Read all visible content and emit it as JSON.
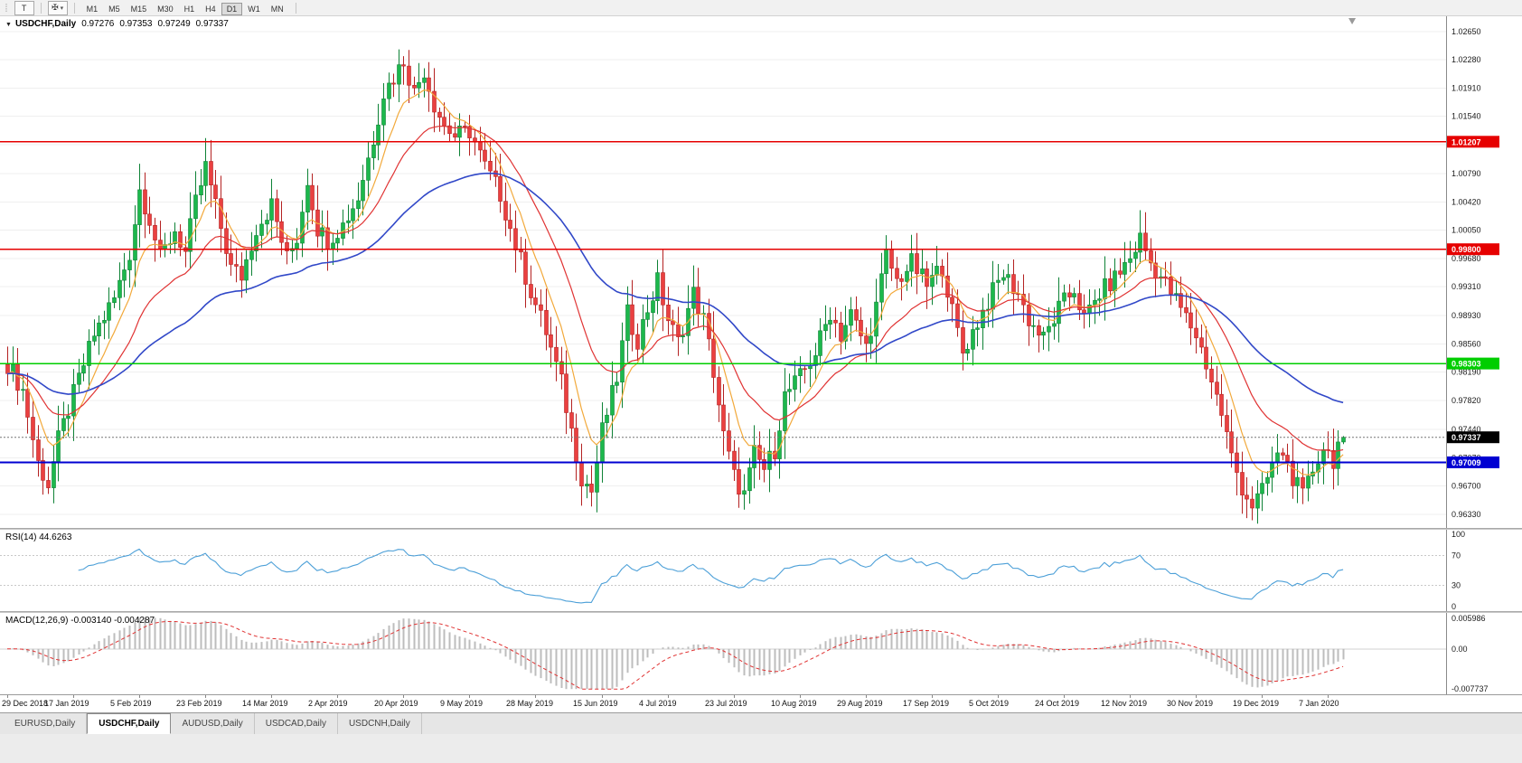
{
  "toolbar": {
    "templates_button": "T",
    "drawing_tool_glyph": "✠",
    "dropdown_glyph": "▾",
    "grip_glyph": "⡇",
    "timeframes": [
      "M1",
      "M5",
      "M15",
      "M30",
      "H1",
      "H4",
      "D1",
      "W1",
      "MN"
    ],
    "active_timeframe": "D1"
  },
  "symbol_header": {
    "dropdown_glyph": "▼",
    "title": "USDCHF,Daily",
    "open": "0.97276",
    "high": "0.97353",
    "low": "0.97249",
    "close": "0.97337"
  },
  "indicators": {
    "rsi_label": "RSI(14) 44.6263",
    "macd_label": "MACD(12,26,9) -0.003140 -0.004287"
  },
  "tabs": [
    {
      "label": "EURUSD,Daily",
      "active": false
    },
    {
      "label": "USDCHF,Daily",
      "active": true
    },
    {
      "label": "AUDUSD,Daily",
      "active": false
    },
    {
      "label": "USDCAD,Daily",
      "active": false
    },
    {
      "label": "USDCNH,Daily",
      "active": false
    }
  ],
  "chart_data": {
    "type": "candlestick",
    "symbol": "USDCHF",
    "timeframe": "Daily",
    "title": "USDCHF,Daily",
    "price_range": [
      0.9615,
      1.0285
    ],
    "price_decimals": 5,
    "price_ticks": [
      1.0265,
      1.0228,
      1.0191,
      1.0154,
      1.0117,
      1.0079,
      1.0042,
      1.0005,
      0.9968,
      0.9931,
      0.9893,
      0.9856,
      0.9819,
      0.9782,
      0.9744,
      0.9707,
      0.967,
      0.9633
    ],
    "x_labels": [
      "29 Dec 2018",
      "17 Jan 2019",
      "5 Feb 2019",
      "23 Feb 2019",
      "14 Mar 2019",
      "2 Apr 2019",
      "20 Apr 2019",
      "9 May 2019",
      "28 May 2019",
      "15 Jun 2019",
      "4 Jul 2019",
      "23 Jul 2019",
      "10 Aug 2019",
      "29 Aug 2019",
      "17 Sep 2019",
      "5 Oct 2019",
      "24 Oct 2019",
      "12 Nov 2019",
      "30 Nov 2019",
      "19 Dec 2019",
      "7 Jan 2020"
    ],
    "label_every": 13,
    "candle_count": 264,
    "price_anchors": [
      [
        0,
        0.983
      ],
      [
        3,
        0.9795
      ],
      [
        6,
        0.97
      ],
      [
        8,
        0.9672
      ],
      [
        10,
        0.973
      ],
      [
        13,
        0.979
      ],
      [
        17,
        0.9868
      ],
      [
        21,
        0.9915
      ],
      [
        24,
        0.9975
      ],
      [
        26,
        1.0058
      ],
      [
        28,
        1.002
      ],
      [
        30,
        0.9968
      ],
      [
        33,
        1.0005
      ],
      [
        35,
        0.9975
      ],
      [
        37,
        1.004
      ],
      [
        39,
        1.0088
      ],
      [
        41,
        1.0035
      ],
      [
        44,
        0.9955
      ],
      [
        46,
        0.9945
      ],
      [
        49,
        1.0008
      ],
      [
        52,
        1.0038
      ],
      [
        55,
        0.9968
      ],
      [
        57,
        0.9995
      ],
      [
        59,
        1.0072
      ],
      [
        61,
        1.0008
      ],
      [
        63,
        0.9992
      ],
      [
        66,
        1.0012
      ],
      [
        69,
        1.0048
      ],
      [
        72,
        1.0125
      ],
      [
        74,
        1.0185
      ],
      [
        76,
        1.0205
      ],
      [
        78,
        1.0228
      ],
      [
        80,
        1.0185
      ],
      [
        82,
        1.0215
      ],
      [
        84,
        1.017
      ],
      [
        86,
        1.0142
      ],
      [
        88,
        1.0128
      ],
      [
        91,
        1.0135
      ],
      [
        94,
        1.0088
      ],
      [
        97,
        1.0052
      ],
      [
        100,
        0.9985
      ],
      [
        103,
        0.9925
      ],
      [
        106,
        0.9872
      ],
      [
        109,
        0.9805
      ],
      [
        111,
        0.9742
      ],
      [
        113,
        0.9682
      ],
      [
        115,
        0.9663
      ],
      [
        117,
        0.9742
      ],
      [
        120,
        0.9812
      ],
      [
        122,
        0.9895
      ],
      [
        124,
        0.9862
      ],
      [
        126,
        0.9902
      ],
      [
        128,
        0.9938
      ],
      [
        130,
        0.9888
      ],
      [
        132,
        0.9858
      ],
      [
        135,
        0.9922
      ],
      [
        137,
        0.9888
      ],
      [
        139,
        0.982
      ],
      [
        141,
        0.9735
      ],
      [
        143,
        0.9682
      ],
      [
        145,
        0.9658
      ],
      [
        147,
        0.9712
      ],
      [
        149,
        0.9692
      ],
      [
        151,
        0.9718
      ],
      [
        153,
        0.9788
      ],
      [
        156,
        0.9812
      ],
      [
        159,
        0.9845
      ],
      [
        162,
        0.9898
      ],
      [
        164,
        0.9868
      ],
      [
        166,
        0.9895
      ],
      [
        169,
        0.9852
      ],
      [
        171,
        0.9905
      ],
      [
        173,
        0.9972
      ],
      [
        175,
        0.9938
      ],
      [
        178,
        0.9962
      ],
      [
        181,
        0.9932
      ],
      [
        184,
        0.9958
      ],
      [
        186,
        0.9898
      ],
      [
        188,
        0.9845
      ],
      [
        190,
        0.9872
      ],
      [
        193,
        0.9912
      ],
      [
        196,
        0.9948
      ],
      [
        199,
        0.9922
      ],
      [
        201,
        0.9888
      ],
      [
        204,
        0.9862
      ],
      [
        207,
        0.9902
      ],
      [
        210,
        0.9928
      ],
      [
        212,
        0.9888
      ],
      [
        215,
        0.9922
      ],
      [
        218,
        0.9942
      ],
      [
        221,
        0.9968
      ],
      [
        223,
        0.9995
      ],
      [
        225,
        0.9962
      ],
      [
        228,
        0.9935
      ],
      [
        231,
        0.9902
      ],
      [
        234,
        0.9868
      ],
      [
        236,
        0.983
      ],
      [
        239,
        0.9765
      ],
      [
        241,
        0.9708
      ],
      [
        243,
        0.9668
      ],
      [
        245,
        0.9645
      ],
      [
        247,
        0.9662
      ],
      [
        249,
        0.9698
      ],
      [
        251,
        0.9715
      ],
      [
        253,
        0.9682
      ],
      [
        255,
        0.9655
      ],
      [
        257,
        0.9692
      ],
      [
        259,
        0.9722
      ],
      [
        261,
        0.9705
      ],
      [
        263,
        0.97337
      ]
    ],
    "last_candle": [
      0.97276,
      0.97353,
      0.97249,
      0.97337
    ],
    "hlines": [
      {
        "price": 1.01207,
        "color": "#e60000",
        "width": 1.4
      },
      {
        "price": 0.998,
        "color": "#e60000",
        "width": 1.4
      },
      {
        "price": 0.98303,
        "color": "#00ce00",
        "width": 1.6
      },
      {
        "price": 0.97009,
        "color": "#0000d2",
        "width": 2
      }
    ],
    "current_price": {
      "value": 0.97337,
      "line_color": "#777777",
      "badge_color": "#000000"
    },
    "moving_averages": [
      {
        "period": 8,
        "color": "#f2a93b",
        "width": 1.2
      },
      {
        "period": 21,
        "color": "#e03333",
        "width": 1.2
      },
      {
        "period": 55,
        "color": "#3148c8",
        "width": 1.6
      }
    ],
    "rsi": {
      "period": 14,
      "current": 44.6263,
      "axis": [
        100,
        70,
        30,
        0
      ],
      "levels": [
        70,
        30
      ],
      "color": "#4da0d8"
    },
    "macd": {
      "fast": 12,
      "slow": 26,
      "signal": 9,
      "current_main": -0.00314,
      "current_signal": -0.004287,
      "axis_labels": [
        "0.005986",
        "0.00",
        "-0.007737"
      ],
      "range": [
        -0.007737,
        0.005986
      ],
      "hist_color": "#bdbdbd",
      "signal_color": "#e03333"
    },
    "colors": {
      "bull_fill": "#1cb84c",
      "bull_stroke": "#0e8236",
      "bear_fill": "#ea4040",
      "bear_stroke": "#b42222",
      "grid": "#efefef",
      "axis_line": "#8a8a8a",
      "tick_text": "#1a1a1a",
      "shift_marker": "#9a9a9a"
    }
  }
}
